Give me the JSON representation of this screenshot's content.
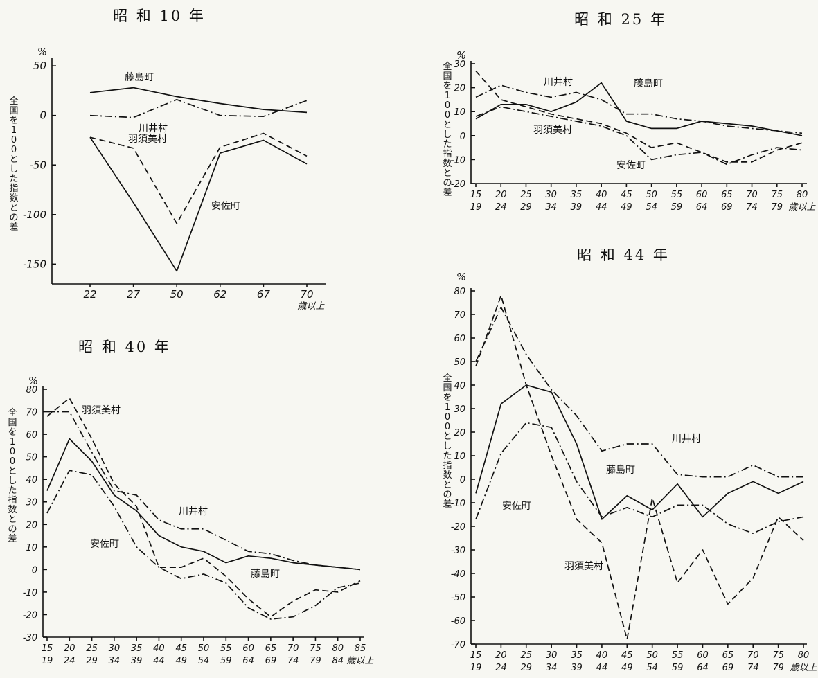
{
  "chart_data": [
    {
      "type": "line",
      "title": "昭 和 10 年",
      "ylabel": "全国を100とした指数との差",
      "yunit": "%",
      "ylim": [
        -170,
        55
      ],
      "yticks": [
        50,
        0,
        -50,
        -100,
        -150
      ],
      "categories": [
        "22",
        "27",
        "50",
        "62",
        "67",
        "70"
      ],
      "x_end_label": "歳以上",
      "grid": false,
      "series": [
        {
          "name": "藤島町",
          "dash": "solid",
          "values": [
            23,
            28,
            19,
            12,
            6,
            3
          ]
        },
        {
          "name": "川井村",
          "dash": "dashdot",
          "values": [
            0,
            -2,
            16,
            0,
            -1,
            15
          ]
        },
        {
          "name": "羽須美村",
          "dash": "dashed",
          "values": [
            -22,
            -33,
            -109,
            -32,
            -18,
            -41
          ]
        },
        {
          "name": "安佐町",
          "dash": "solid",
          "values": [
            -22,
            -88,
            -157,
            -38,
            -25,
            -49
          ]
        }
      ]
    },
    {
      "type": "line",
      "title": "昭 和 25 年",
      "ylabel": "全国を100とした指数との差",
      "yunit": "%",
      "ylim": [
        -20,
        30
      ],
      "yticks": [
        30,
        20,
        10,
        0,
        -10,
        -20
      ],
      "categories": [
        "15\n19",
        "20\n24",
        "25\n29",
        "30\n34",
        "35\n39",
        "40\n44",
        "45\n49",
        "50\n54",
        "55\n59",
        "60\n64",
        "65\n69",
        "70\n74",
        "75\n79",
        "80\n歳以上"
      ],
      "grid": false,
      "series": [
        {
          "name": "藤島町",
          "dash": "solid",
          "values": [
            7,
            13,
            13,
            10,
            14,
            22,
            6,
            3,
            3,
            6,
            5,
            4,
            2,
            0
          ]
        },
        {
          "name": "川井村",
          "dash": "dashdot",
          "values": [
            16,
            21,
            18,
            16,
            18,
            15,
            9,
            9,
            7,
            6,
            4,
            3,
            2,
            1
          ]
        },
        {
          "name": "羽須美村",
          "dash": "dashed",
          "values": [
            27,
            15,
            12,
            9,
            7,
            5,
            1,
            -5,
            -3,
            -7,
            -11,
            -11,
            -6,
            -3
          ]
        },
        {
          "name": "安佐町",
          "dash": "dashdot",
          "values": [
            8,
            12,
            10,
            8,
            6,
            4,
            0,
            -10,
            -8,
            -7,
            -12,
            -8,
            -5,
            -6
          ]
        }
      ]
    },
    {
      "type": "line",
      "title": "昭 和 40 年",
      "ylabel": "全国を100とした指数との差",
      "yunit": "%",
      "ylim": [
        -30,
        80
      ],
      "yticks": [
        80,
        70,
        60,
        50,
        40,
        30,
        20,
        10,
        0,
        -10,
        -20,
        -30
      ],
      "categories": [
        "15\n19",
        "20\n24",
        "25\n29",
        "30\n34",
        "35\n39",
        "40\n44",
        "45\n49",
        "50\n54",
        "55\n59",
        "60\n64",
        "65\n69",
        "70\n74",
        "75\n79",
        "80\n84",
        "85\n歳以上"
      ],
      "grid": false,
      "series": [
        {
          "name": "羽須美村",
          "dash": "dashed",
          "values": [
            68,
            76,
            58,
            38,
            28,
            1,
            1,
            5,
            -3,
            -13,
            -21,
            -14,
            -9,
            -10,
            -5
          ]
        },
        {
          "name": "川井村",
          "dash": "dashdot",
          "values": [
            70,
            70,
            52,
            35,
            33,
            22,
            18,
            18,
            13,
            8,
            7,
            4,
            2,
            1,
            0
          ]
        },
        {
          "name": "藤島町",
          "dash": "solid",
          "values": [
            35,
            58,
            48,
            33,
            26,
            15,
            10,
            8,
            3,
            6,
            5,
            3,
            2,
            1,
            0
          ]
        },
        {
          "name": "安佐町",
          "dash": "dashdot",
          "values": [
            25,
            44,
            42,
            28,
            10,
            1,
            -4,
            -2,
            -6,
            -17,
            -22,
            -21,
            -16,
            -8,
            -6
          ]
        }
      ]
    },
    {
      "type": "line",
      "title": "昭 和 44 年",
      "ylabel": "全国を100とした指数との差",
      "yunit": "%",
      "ylim": [
        -70,
        80
      ],
      "yticks": [
        80,
        70,
        60,
        50,
        40,
        30,
        20,
        10,
        0,
        -10,
        -20,
        -30,
        -40,
        -50,
        -60,
        -70
      ],
      "categories": [
        "15\n19",
        "20\n24",
        "25\n29",
        "30\n34",
        "35\n39",
        "40\n44",
        "45\n49",
        "50\n54",
        "55\n59",
        "60\n64",
        "65\n69",
        "70\n74",
        "75\n79",
        "80\n歳以上"
      ],
      "grid": false,
      "series": [
        {
          "name": "川井村",
          "dash": "dashdot",
          "values": [
            50,
            73,
            53,
            38,
            27,
            12,
            15,
            15,
            2,
            1,
            1,
            6,
            1,
            1
          ]
        },
        {
          "name": "藤島町",
          "dash": "solid",
          "values": [
            -6,
            32,
            40,
            37,
            15,
            -17,
            -7,
            -13,
            -2,
            -16,
            -6,
            -1,
            -6,
            -1
          ]
        },
        {
          "name": "安佐町",
          "dash": "dashdot",
          "values": [
            -17,
            11,
            24,
            22,
            -1,
            -16,
            -12,
            -16,
            -11,
            -11,
            -19,
            -23,
            -18,
            -16
          ]
        },
        {
          "name": "羽須美村",
          "dash": "dashed",
          "values": [
            48,
            78,
            40,
            10,
            -17,
            -27,
            -68,
            -8,
            -44,
            -30,
            -53,
            -42,
            -16,
            -26
          ]
        }
      ]
    }
  ]
}
